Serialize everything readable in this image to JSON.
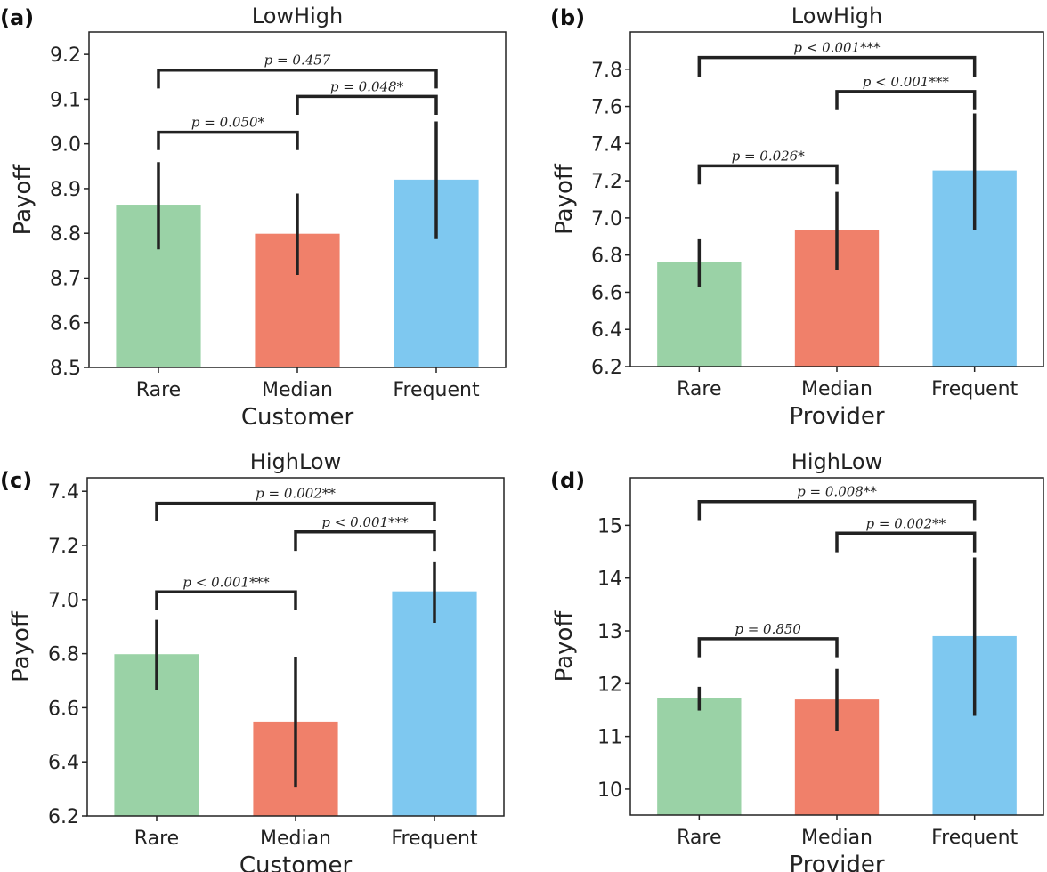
{
  "chart_data": [
    {
      "type": "bar",
      "panel_label": "(a)",
      "title": "LowHigh",
      "xlabel": "Customer",
      "ylabel": "Payoff",
      "categories": [
        "Rare",
        "Median",
        "Frequent"
      ],
      "values": [
        8.864,
        8.799,
        8.92
      ],
      "error_low": [
        8.764,
        8.707,
        8.787
      ],
      "error_high": [
        8.959,
        8.889,
        9.05
      ],
      "colors": [
        "#9ad2a6",
        "#f0806a",
        "#7ec8f0"
      ],
      "ylim": [
        8.5,
        9.25
      ],
      "yticks": [
        "8.5",
        "8.6",
        "8.7",
        "8.8",
        "8.9",
        "9.0",
        "9.1",
        "9.2"
      ],
      "brackets": [
        {
          "from": 0,
          "to": 1,
          "y": 9.026,
          "leg": 8.986,
          "label": "p = 0.050*"
        },
        {
          "from": 1,
          "to": 2,
          "y": 9.106,
          "leg": 9.065,
          "label": "p = 0.048*"
        },
        {
          "from": 0,
          "to": 2,
          "y": 9.165,
          "leg": 9.124,
          "label": "p = 0.457"
        }
      ]
    },
    {
      "type": "bar",
      "panel_label": "(b)",
      "title": "LowHigh",
      "xlabel": "Provider",
      "ylabel": "Payoff",
      "categories": [
        "Rare",
        "Median",
        "Frequent"
      ],
      "values": [
        6.762,
        6.935,
        7.255
      ],
      "error_low": [
        6.63,
        6.72,
        6.937
      ],
      "error_high": [
        6.885,
        7.14,
        7.562
      ],
      "colors": [
        "#9ad2a6",
        "#f0806a",
        "#7ec8f0"
      ],
      "ylim": [
        6.2,
        8.0
      ],
      "yticks": [
        "6.2",
        "6.4",
        "6.6",
        "6.8",
        "7.0",
        "7.2",
        "7.4",
        "7.6",
        "7.8"
      ],
      "brackets": [
        {
          "from": 0,
          "to": 1,
          "y": 7.28,
          "leg": 7.18,
          "label": "p = 0.026*"
        },
        {
          "from": 1,
          "to": 2,
          "y": 7.68,
          "leg": 7.58,
          "label": "p < 0.001***"
        },
        {
          "from": 0,
          "to": 2,
          "y": 7.863,
          "leg": 7.76,
          "label": "p < 0.001***"
        }
      ]
    },
    {
      "type": "bar",
      "panel_label": "(c)",
      "title": "HighLow",
      "xlabel": "Customer",
      "ylabel": "Payoff",
      "categories": [
        "Rare",
        "Median",
        "Frequent"
      ],
      "values": [
        6.798,
        6.549,
        7.03
      ],
      "error_low": [
        6.665,
        6.305,
        6.914
      ],
      "error_high": [
        6.925,
        6.789,
        7.138
      ],
      "colors": [
        "#9ad2a6",
        "#f0806a",
        "#7ec8f0"
      ],
      "ylim": [
        6.2,
        7.45
      ],
      "yticks": [
        "6.2",
        "6.4",
        "6.6",
        "6.8",
        "7.0",
        "7.2",
        "7.4"
      ],
      "brackets": [
        {
          "from": 0,
          "to": 1,
          "y": 7.028,
          "leg": 6.96,
          "label": "p < 0.001***"
        },
        {
          "from": 1,
          "to": 2,
          "y": 7.25,
          "leg": 7.18,
          "label": "p < 0.001***"
        },
        {
          "from": 0,
          "to": 2,
          "y": 7.356,
          "leg": 7.29,
          "label": "p = 0.002**"
        }
      ]
    },
    {
      "type": "bar",
      "panel_label": "(d)",
      "title": "HighLow",
      "xlabel": "Provider",
      "ylabel": "Payoff",
      "categories": [
        "Rare",
        "Median",
        "Frequent"
      ],
      "values": [
        11.73,
        11.7,
        12.9
      ],
      "error_low": [
        11.49,
        11.1,
        11.39
      ],
      "error_high": [
        11.94,
        12.28,
        14.39
      ],
      "colors": [
        "#9ad2a6",
        "#f0806a",
        "#7ec8f0"
      ],
      "ylim": [
        9.51,
        15.9
      ],
      "yticks": [
        "10",
        "11",
        "12",
        "13",
        "14",
        "15"
      ],
      "brackets": [
        {
          "from": 0,
          "to": 1,
          "y": 12.85,
          "leg": 12.5,
          "label": "p = 0.850"
        },
        {
          "from": 1,
          "to": 2,
          "y": 14.85,
          "leg": 14.49,
          "label": "p = 0.002**"
        },
        {
          "from": 0,
          "to": 2,
          "y": 15.45,
          "leg": 15.1,
          "label": "p = 0.008**"
        }
      ]
    }
  ]
}
